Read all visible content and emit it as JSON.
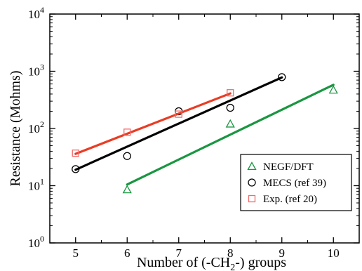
{
  "chart_data": {
    "type": "scatter",
    "xlabel_parts": [
      "Number of (-CH",
      "2",
      "-) groups"
    ],
    "ylabel": "Resistance (Mohms)",
    "xlim": [
      4.5,
      10.5
    ],
    "ylim": [
      1,
      10000
    ],
    "yscale": "log",
    "x_ticks": [
      5,
      6,
      7,
      8,
      9,
      10
    ],
    "y_ticks": [
      {
        "value": 1,
        "base": "10",
        "exp": "0"
      },
      {
        "value": 10,
        "base": "10",
        "exp": "1"
      },
      {
        "value": 100,
        "base": "10",
        "exp": "2"
      },
      {
        "value": 1000,
        "base": "10",
        "exp": "3"
      },
      {
        "value": 10000,
        "base": "10",
        "exp": "4"
      }
    ],
    "grid": false,
    "legend_position": "lower-right",
    "series": [
      {
        "name": "NEGF/DFT",
        "marker": "triangle",
        "color": "#1a9641",
        "points": [
          {
            "x": 6,
            "y": 8.5
          },
          {
            "x": 8,
            "y": 120
          },
          {
            "x": 10,
            "y": 470
          }
        ],
        "fit": [
          {
            "x": 6,
            "y": 10.5
          },
          {
            "x": 10,
            "y": 580
          }
        ]
      },
      {
        "name": "MECS (ref 39)",
        "marker": "circle",
        "color": "#000000",
        "points": [
          {
            "x": 5,
            "y": 19.5
          },
          {
            "x": 6,
            "y": 33
          },
          {
            "x": 7,
            "y": 200
          },
          {
            "x": 8,
            "y": 230
          },
          {
            "x": 9,
            "y": 790
          }
        ],
        "fit": [
          {
            "x": 5,
            "y": 19
          },
          {
            "x": 9,
            "y": 780
          }
        ]
      },
      {
        "name": "Exp. (ref 20)",
        "marker": "square",
        "color": "#f26b6b",
        "line_color": "#ea3c24",
        "points": [
          {
            "x": 5,
            "y": 37
          },
          {
            "x": 6,
            "y": 86
          },
          {
            "x": 7,
            "y": 178
          },
          {
            "x": 8,
            "y": 420
          }
        ],
        "fit": [
          {
            "x": 5,
            "y": 36
          },
          {
            "x": 8,
            "y": 410
          }
        ]
      }
    ]
  }
}
